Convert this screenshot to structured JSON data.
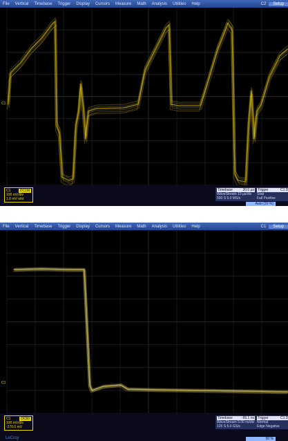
{
  "screens": [
    {
      "menu": [
        "File",
        "Vertical",
        "Timebase",
        "Trigger",
        "Display",
        "Cursors",
        "Measure",
        "Math",
        "Analysis",
        "Utilities",
        "Help"
      ],
      "menu_right": [
        "C2",
        "Setup"
      ],
      "marker": "C1",
      "channel": {
        "name": "C1",
        "coupling": "DC1M",
        "lines": [
          "100 mV/div",
          "1.0 mV ofst"
        ]
      },
      "timebase": {
        "label": "Timebase",
        "value": "20.0 µs",
        "lines": [
          "WaveStream 10 µs/div",
          "500 S  5.0 MS/s"
        ]
      },
      "trigger": {
        "label": "Trigger",
        "value": "C1 DC",
        "lines": [
          "Stop",
          "Fall  Positive"
        ]
      },
      "status": "Auto (20 %)"
    },
    {
      "menu": [
        "File",
        "Vertical",
        "Timebase",
        "Trigger",
        "Display",
        "Cursors",
        "Measure",
        "Math",
        "Analysis",
        "Utilities",
        "Help"
      ],
      "menu_right": [
        "C1",
        "Setup"
      ],
      "marker": "C1",
      "channel": {
        "name": "C1",
        "coupling": "DC50",
        "lines": [
          "100 mV/div",
          "-270.0 mV"
        ]
      },
      "brand": "LeCroy",
      "timebase": {
        "label": "Timebase",
        "value": "-65.1 ns",
        "lines": [
          "WaveStream 5.00 ns/div",
          "125 S  5.0 GS/s"
        ]
      },
      "trigger": {
        "label": "Trigger",
        "value": "C1 DC",
        "lines": [
          "Normal",
          "Edge  Negative"
        ]
      },
      "status": "50 %"
    }
  ]
}
